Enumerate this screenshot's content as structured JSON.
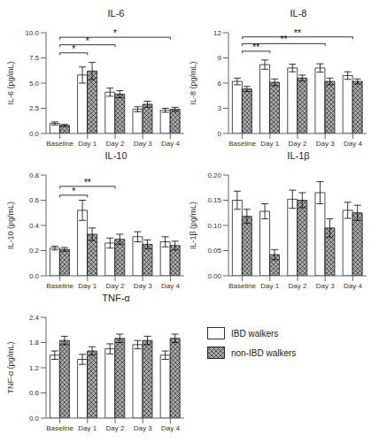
{
  "chart_data": [
    {
      "type": "bar",
      "title": "IL-6",
      "ylabel": "IL-6 (pg/mL)",
      "categories": [
        "Baseline",
        "Day 1",
        "Day 2",
        "Day 3",
        "Day 4"
      ],
      "series": [
        {
          "name": "IBD walkers",
          "color": "#ffffff",
          "values": [
            1.0,
            5.8,
            4.1,
            2.4,
            2.3
          ],
          "errors": [
            0.15,
            0.8,
            0.4,
            0.25,
            0.2
          ]
        },
        {
          "name": "non-IBD walkers",
          "color": "#aaaaaa",
          "values": [
            0.8,
            6.2,
            3.9,
            2.9,
            2.4
          ],
          "errors": [
            0.1,
            0.85,
            0.35,
            0.3,
            0.2
          ]
        }
      ],
      "ylim": [
        0,
        10.0
      ],
      "yticks": [
        {
          "value": 0.0,
          "label": "0.0"
        },
        2.5,
        {
          "value": 5.0,
          "label": "5.0"
        },
        7.5,
        {
          "value": 10.0,
          "label": "10.0"
        }
      ],
      "grid": false,
      "annotations": [
        {
          "x1": "Baseline",
          "x2": "Day 1",
          "y": 8.0,
          "label": "*"
        },
        {
          "x1": "Baseline",
          "x2": "Day 2",
          "y": 8.8,
          "label": "*"
        },
        {
          "x1": "Baseline",
          "x2": "Day 4",
          "y": 9.55,
          "label": "*"
        }
      ]
    },
    {
      "type": "bar",
      "title": "IL-8",
      "ylabel": "IL-8 (pg/mL)",
      "categories": [
        "Baseline",
        "Day 1",
        "Day 2",
        "Day 3",
        "Day 4"
      ],
      "series": [
        {
          "name": "IBD walkers",
          "color": "#ffffff",
          "values": [
            6.2,
            8.2,
            7.8,
            7.8,
            6.9
          ],
          "errors": [
            0.4,
            0.55,
            0.45,
            0.5,
            0.45
          ]
        },
        {
          "name": "non-IBD walkers",
          "color": "#aaaaaa",
          "values": [
            5.3,
            6.1,
            6.6,
            6.2,
            6.2
          ],
          "errors": [
            0.3,
            0.4,
            0.35,
            0.4,
            0.3
          ]
        }
      ],
      "ylim": [
        0,
        12
      ],
      "yticks": [
        0,
        3,
        6,
        9,
        12
      ],
      "grid": false,
      "annotations": [
        {
          "x1": "Baseline",
          "x2": "Day 1",
          "y": 9.8,
          "label": "**"
        },
        {
          "x1": "Baseline",
          "x2": "Day 3",
          "y": 10.7,
          "label": "**"
        },
        {
          "x1": "Baseline",
          "x2": "Day 4",
          "y": 11.5,
          "label": "**"
        }
      ]
    },
    {
      "type": "bar",
      "title": "IL-10",
      "ylabel": "IL-10 (pg/mL)",
      "categories": [
        "Baseline",
        "Day 1",
        "Day 2",
        "Day 3",
        "Day 4"
      ],
      "series": [
        {
          "name": "IBD walkers",
          "color": "#ffffff",
          "values": [
            0.22,
            0.52,
            0.26,
            0.31,
            0.27
          ],
          "errors": [
            0.015,
            0.08,
            0.04,
            0.04,
            0.04
          ]
        },
        {
          "name": "non-IBD walkers",
          "color": "#aaaaaa",
          "values": [
            0.21,
            0.33,
            0.29,
            0.25,
            0.24
          ],
          "errors": [
            0.015,
            0.05,
            0.04,
            0.035,
            0.035
          ]
        }
      ],
      "ylim": [
        0,
        0.8
      ],
      "yticks": [
        {
          "value": 0.0,
          "label": "0.0"
        },
        0.2,
        0.4,
        0.6,
        0.8
      ],
      "grid": false,
      "annotations": [
        {
          "x1": "Baseline",
          "x2": "Day 1",
          "y": 0.64,
          "label": "*"
        },
        {
          "x1": "Baseline",
          "x2": "Day 2",
          "y": 0.71,
          "label": "**"
        }
      ]
    },
    {
      "type": "bar",
      "title": "IL-1β",
      "ylabel": "IL-1β (pg/mL)",
      "categories": [
        "Baseline",
        "Day 1",
        "Day 2",
        "Day 3",
        "Day 4"
      ],
      "series": [
        {
          "name": "IBD walkers",
          "color": "#ffffff",
          "values": [
            0.15,
            0.128,
            0.152,
            0.165,
            0.13
          ],
          "errors": [
            0.018,
            0.015,
            0.018,
            0.022,
            0.016
          ]
        },
        {
          "name": "non-IBD walkers",
          "color": "#aaaaaa",
          "values": [
            0.118,
            0.042,
            0.15,
            0.095,
            0.125
          ],
          "errors": [
            0.014,
            0.01,
            0.015,
            0.018,
            0.015
          ]
        }
      ],
      "ylim": [
        0,
        0.2
      ],
      "yticks": [
        {
          "value": 0.0,
          "label": "0.00"
        },
        0.05,
        {
          "value": 0.1,
          "label": "0.10"
        },
        0.15,
        {
          "value": 0.2,
          "label": "0.20"
        }
      ],
      "grid": false,
      "annotations": []
    },
    {
      "type": "bar",
      "title": "TNF-α",
      "ylabel": "TNF-α (pg/mL)",
      "categories": [
        "Baseline",
        "Day 1",
        "Day 2",
        "Day 3",
        "Day 4"
      ],
      "series": [
        {
          "name": "IBD walkers",
          "color": "#ffffff",
          "values": [
            1.5,
            1.4,
            1.65,
            1.75,
            1.5
          ],
          "errors": [
            0.1,
            0.12,
            0.12,
            0.1,
            0.1
          ]
        },
        {
          "name": "non-IBD walkers",
          "color": "#aaaaaa",
          "values": [
            1.85,
            1.6,
            1.9,
            1.85,
            1.9
          ],
          "errors": [
            0.1,
            0.1,
            0.1,
            0.1,
            0.1
          ]
        }
      ],
      "ylim": [
        0,
        2.4
      ],
      "yticks": [
        {
          "value": 0.0,
          "label": "0.0"
        },
        0.6,
        1.2,
        1.8,
        2.4
      ],
      "grid": false,
      "annotations": []
    }
  ]
}
